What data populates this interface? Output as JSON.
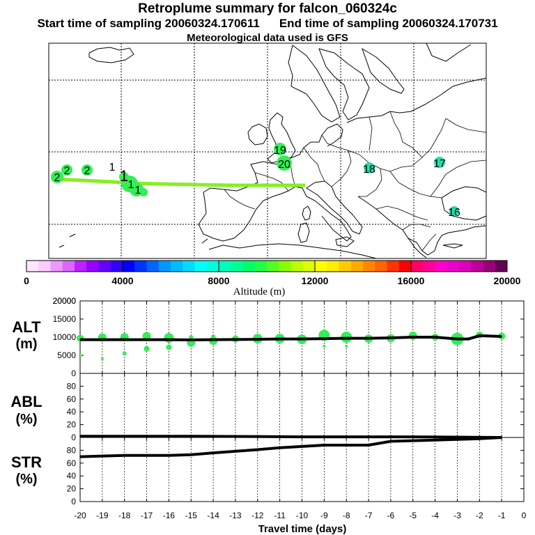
{
  "header": {
    "title": "Retroplume summary for falcon_060324c",
    "start_label": "Start time of sampling 20060324.170611",
    "end_label": "End time of sampling 20060324.170731",
    "met_label": "Meteorological data used is GFS"
  },
  "colors": {
    "plume_path": "#88ee22",
    "green": "#33ee55",
    "teal": "#22ddaa",
    "line": "#000000"
  },
  "map": {
    "labels": [
      {
        "text": "19",
        "color": "#22ddaa"
      },
      {
        "text": "20",
        "color": "#33ee55"
      },
      {
        "text": "18",
        "color": "#22ddaa"
      },
      {
        "text": "17",
        "color": "#22ddaa"
      },
      {
        "text": "16",
        "color": "#22ddaa"
      },
      {
        "text": "2",
        "color": "#33ee55"
      },
      {
        "text": "2",
        "color": "#33ee55"
      },
      {
        "text": "2",
        "color": "#33ee55"
      },
      {
        "text": "1",
        "color": "#33ee55"
      },
      {
        "text": "1",
        "color": "#33ee55"
      },
      {
        "text": "1",
        "color": "#33ee55"
      },
      {
        "text": "1",
        "color": "#33ee55"
      }
    ]
  },
  "colorbar": {
    "ticks": [
      "0",
      "4000",
      "8000",
      "12000",
      "16000",
      "20000"
    ],
    "label": "Altitude (m)",
    "colors": [
      "#ffe6ff",
      "#ffccff",
      "#ee99ff",
      "#dd66ff",
      "#bb22ff",
      "#9900ff",
      "#6600ff",
      "#3300ff",
      "#0000ff",
      "#0033ff",
      "#0066ff",
      "#0099ff",
      "#00bbff",
      "#00ddff",
      "#00ffff",
      "#00ffdd",
      "#00ffbb",
      "#00ff99",
      "#00ff66",
      "#22ff44",
      "#55ff22",
      "#88ff00",
      "#bbff00",
      "#ddff00",
      "#ffff00",
      "#ffee00",
      "#ffcc00",
      "#ffaa00",
      "#ff8800",
      "#ff6600",
      "#ff3300",
      "#ff0000",
      "#ff0066",
      "#ff0099",
      "#ff00cc",
      "#ee00cc",
      "#dd00bb",
      "#bb0099",
      "#990077",
      "#660055"
    ]
  },
  "panels": {
    "alt_label": "ALT",
    "alt_unit": "(m)",
    "abl_label": "ABL",
    "abl_unit": "(%)",
    "str_label": "STR",
    "str_unit": "(%)",
    "xlabel": "Travel time (days)"
  },
  "chart_data": [
    {
      "type": "line",
      "name": "ALT",
      "ylabel": "ALT (m)",
      "xlim": [
        -20,
        0
      ],
      "ylim": [
        0,
        20000
      ],
      "yticks": [
        0,
        5000,
        10000,
        15000,
        20000
      ],
      "x": [
        -20,
        -19,
        -18,
        -17,
        -16,
        -15,
        -14,
        -13,
        -12,
        -11,
        -10,
        -9,
        -8,
        -7,
        -6,
        -5,
        -4,
        -3,
        -2.5,
        -2,
        -1
      ],
      "values": [
        9300,
        9300,
        9300,
        9300,
        9300,
        9250,
        9300,
        9350,
        9400,
        9500,
        9500,
        9600,
        9700,
        9700,
        9800,
        10000,
        10000,
        9500,
        9500,
        10400,
        10200
      ],
      "plume_points": [
        {
          "x": -20,
          "y": 9700,
          "r": 5
        },
        {
          "x": -20,
          "y": 5000,
          "r": 2
        },
        {
          "x": -19,
          "y": 9900,
          "r": 6
        },
        {
          "x": -19,
          "y": 4000,
          "r": 2
        },
        {
          "x": -18,
          "y": 10000,
          "r": 6
        },
        {
          "x": -18,
          "y": 5500,
          "r": 3
        },
        {
          "x": -17,
          "y": 10300,
          "r": 6
        },
        {
          "x": -17,
          "y": 6800,
          "r": 4
        },
        {
          "x": -16,
          "y": 9800,
          "r": 7
        },
        {
          "x": -16,
          "y": 7200,
          "r": 4
        },
        {
          "x": -15,
          "y": 8500,
          "r": 6
        },
        {
          "x": -15,
          "y": 10000,
          "r": 3
        },
        {
          "x": -14,
          "y": 9000,
          "r": 6
        },
        {
          "x": -14,
          "y": 10200,
          "r": 3
        },
        {
          "x": -13,
          "y": 9500,
          "r": 5
        },
        {
          "x": -12,
          "y": 9600,
          "r": 7
        },
        {
          "x": -11,
          "y": 9600,
          "r": 7
        },
        {
          "x": -10,
          "y": 9400,
          "r": 7
        },
        {
          "x": -9,
          "y": 10500,
          "r": 8
        },
        {
          "x": -9,
          "y": 7500,
          "r": 2
        },
        {
          "x": -8,
          "y": 10000,
          "r": 8
        },
        {
          "x": -8,
          "y": 7500,
          "r": 2
        },
        {
          "x": -7,
          "y": 9600,
          "r": 6
        },
        {
          "x": -6,
          "y": 9700,
          "r": 6
        },
        {
          "x": -5,
          "y": 10400,
          "r": 6
        },
        {
          "x": -4,
          "y": 10000,
          "r": 5
        },
        {
          "x": -3,
          "y": 9500,
          "r": 9
        },
        {
          "x": -2,
          "y": 10600,
          "r": 5
        },
        {
          "x": -1,
          "y": 10300,
          "r": 5
        }
      ]
    },
    {
      "type": "line",
      "name": "ABL",
      "ylabel": "ABL (%)",
      "xlim": [
        -20,
        0
      ],
      "ylim": [
        0,
        100
      ],
      "yticks": [
        0,
        20,
        40,
        60,
        80
      ],
      "x": [
        -20,
        -15,
        -10,
        -5,
        -1
      ],
      "values": [
        2,
        2,
        1,
        1,
        0
      ]
    },
    {
      "type": "line",
      "name": "STR",
      "ylabel": "STR (%)",
      "xlim": [
        -20,
        0
      ],
      "ylim": [
        0,
        100
      ],
      "yticks": [
        0,
        20,
        40,
        60,
        80
      ],
      "xticks": [
        -20,
        -19,
        -18,
        -17,
        -16,
        -15,
        -14,
        -13,
        -12,
        -11,
        -10,
        -9,
        -8,
        -7,
        -6,
        -5,
        -4,
        -3,
        -2,
        -1,
        0
      ],
      "xlabel": "Travel time (days)",
      "x": [
        -20,
        -18,
        -16,
        -15,
        -14,
        -12,
        -11,
        -10,
        -9,
        -8,
        -7,
        -6,
        -5,
        -4,
        -3,
        -2,
        -1
      ],
      "values": [
        70,
        72,
        72,
        73,
        76,
        81,
        84,
        86,
        88,
        88,
        88,
        94,
        95,
        96,
        97,
        98,
        100
      ]
    }
  ]
}
